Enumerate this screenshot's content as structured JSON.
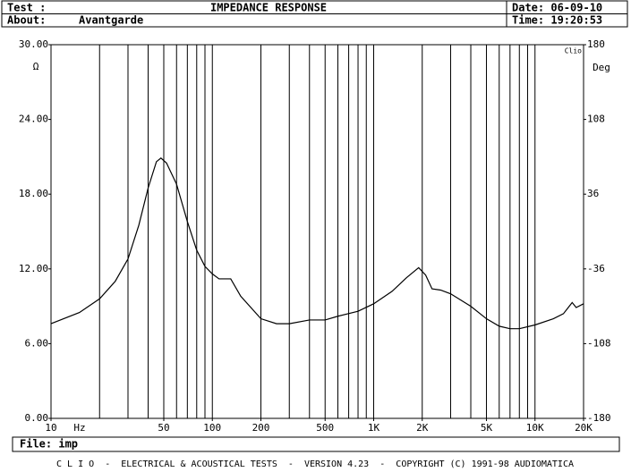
{
  "header": {
    "test_label": "Test :",
    "title": "IMPEDANCE RESPONSE",
    "date": "Date: 06-09-10",
    "about_label": "About:",
    "about": "Avantgarde",
    "time": "Time: 19:20:53"
  },
  "chart_data": {
    "type": "line",
    "tag": "Clio",
    "y_label": "Ω",
    "y2_label": "Deg",
    "x_unit": "Hz",
    "log_x": true,
    "xlim": [
      10,
      20000
    ],
    "ylim": [
      0,
      30
    ],
    "y2lim": [
      -180,
      180
    ],
    "xticks": [
      10,
      50,
      {
        "value": 100,
        "label": "100"
      },
      200,
      500,
      {
        "value": 1000,
        "label": "1K"
      },
      {
        "value": 2000,
        "label": "2K"
      },
      {
        "value": 5000,
        "label": "5K"
      },
      {
        "value": 10000,
        "label": "10K"
      },
      {
        "value": 20000,
        "label": "20K"
      }
    ],
    "xgrid": [
      20,
      30,
      40,
      50,
      60,
      70,
      80,
      90,
      100,
      200,
      300,
      400,
      500,
      600,
      700,
      800,
      900,
      1000,
      2000,
      3000,
      4000,
      5000,
      6000,
      7000,
      8000,
      9000,
      10000
    ],
    "yticks": [
      {
        "value": 0,
        "label": "0.00"
      },
      {
        "value": 6,
        "label": "6.00"
      },
      {
        "value": 12,
        "label": "12.00"
      },
      {
        "value": 18,
        "label": "18.00"
      },
      {
        "value": 24,
        "label": "24.00"
      },
      {
        "value": 30,
        "label": "30.00"
      }
    ],
    "y2ticks": [
      -180,
      -108,
      -36,
      36,
      108,
      180
    ],
    "series": [
      {
        "name": "Impedance",
        "color": "#000000",
        "x": [
          10,
          15,
          20,
          25,
          30,
          35,
          40,
          45,
          48,
          52,
          60,
          70,
          80,
          90,
          100,
          110,
          130,
          150,
          200,
          250,
          300,
          400,
          500,
          600,
          800,
          1000,
          1300,
          1600,
          1900,
          2100,
          2300,
          2600,
          3000,
          4000,
          5000,
          6000,
          7000,
          8000,
          10000,
          13000,
          15000,
          17000,
          18000,
          20000
        ],
        "values": [
          7.6,
          8.5,
          9.6,
          11,
          12.8,
          15.5,
          18.5,
          20.6,
          20.9,
          20.5,
          18.8,
          15.8,
          13.5,
          12.2,
          11.6,
          11.2,
          11.2,
          9.8,
          8.0,
          7.6,
          7.6,
          7.9,
          7.9,
          8.2,
          8.6,
          9.2,
          10.2,
          11.3,
          12.1,
          11.5,
          10.4,
          10.3,
          10.0,
          9.0,
          8.0,
          7.4,
          7.2,
          7.2,
          7.5,
          8.0,
          8.4,
          9.3,
          8.9,
          9.2
        ]
      }
    ]
  },
  "footer": {
    "file": "File: imp",
    "banner": "C L I O  -  ELECTRICAL & ACOUSTICAL TESTS  -  VERSION 4.23  -  COPYRIGHT (C) 1991-98 AUDIOMATICA"
  }
}
